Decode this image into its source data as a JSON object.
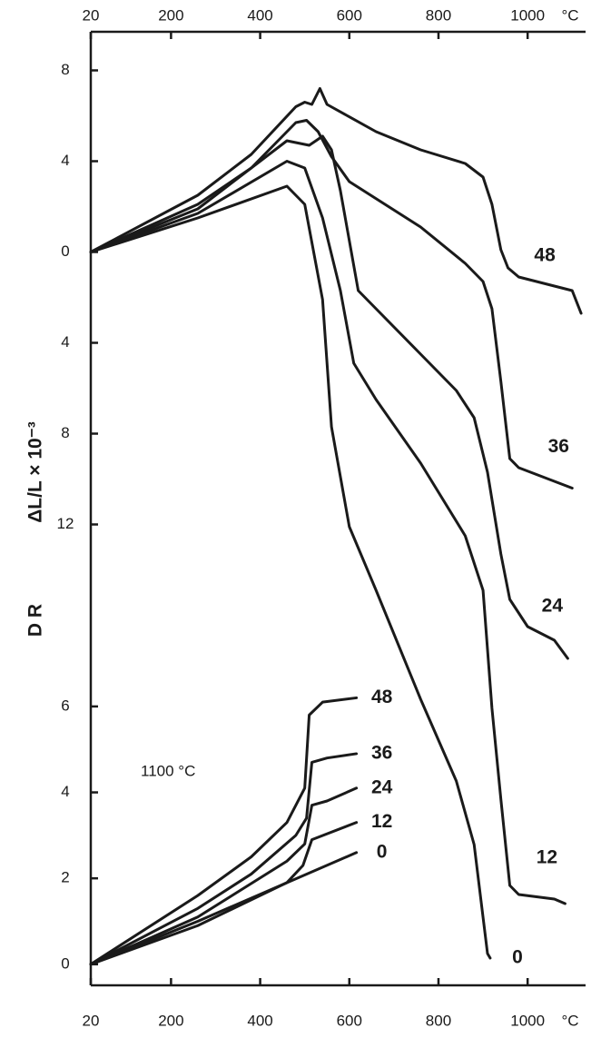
{
  "chart_data": {
    "type": "line",
    "y_label": "ΔL/L × 10⁻³",
    "y2_label": "D R",
    "x_unit": "°C",
    "annotation": "1100 °C",
    "xlim": [
      20,
      1130
    ],
    "xticks": [
      20,
      200,
      400,
      600,
      800,
      1000
    ],
    "ylim": [
      -32.3,
      9.7
    ],
    "yticks": [
      {
        "value": 8,
        "label": "8"
      },
      {
        "value": 4,
        "label": "4"
      },
      {
        "value": 0,
        "label": "0"
      },
      {
        "value": -4,
        "label": "4"
      },
      {
        "value": -8,
        "label": "8"
      },
      {
        "value": -12,
        "label": "12"
      }
    ],
    "y2lim": [
      -0.49,
      21.7
    ],
    "y2ticks": [
      0,
      2,
      4,
      6
    ],
    "color": "#1a1a1a",
    "series": [
      {
        "name": "48",
        "x": [
          20,
          260,
          380,
          480,
          500,
          516,
          534,
          550,
          660,
          760,
          860,
          900,
          920,
          940,
          956,
          980,
          1060,
          1100,
          1120
        ],
        "values": [
          0,
          2.5,
          4.3,
          6.4,
          6.6,
          6.5,
          7.2,
          6.5,
          5.3,
          4.5,
          3.9,
          3.3,
          2.1,
          0.1,
          -0.7,
          -1.1,
          -1.5,
          -1.7,
          -2.7
        ]
      },
      {
        "name": "36",
        "x": [
          20,
          260,
          380,
          480,
          504,
          530,
          560,
          600,
          760,
          860,
          900,
          920,
          940,
          960,
          980,
          1100
        ],
        "values": [
          0,
          2.1,
          3.7,
          5.7,
          5.8,
          5.3,
          4.2,
          3.1,
          1.1,
          -0.5,
          -1.3,
          -2.5,
          -5.7,
          -9.1,
          -9.5,
          -10.4
        ]
      },
      {
        "name": "24",
        "x": [
          20,
          260,
          460,
          510,
          540,
          560,
          580,
          620,
          660,
          760,
          840,
          880,
          910,
          940,
          960,
          1000,
          1060,
          1090
        ],
        "values": [
          0,
          1.9,
          4.9,
          4.7,
          5.1,
          4.5,
          2.7,
          -1.7,
          -2.5,
          -4.5,
          -6.1,
          -7.3,
          -9.7,
          -13.3,
          -15.3,
          -16.5,
          -17.1,
          -17.9
        ]
      },
      {
        "name": "12",
        "x": [
          20,
          260,
          460,
          500,
          540,
          580,
          610,
          660,
          760,
          860,
          900,
          920,
          940,
          960,
          980,
          1060,
          1084
        ],
        "values": [
          0,
          1.7,
          4.0,
          3.7,
          1.5,
          -1.7,
          -4.9,
          -6.5,
          -9.3,
          -12.5,
          -14.9,
          -20.1,
          -24.1,
          -27.9,
          -28.3,
          -28.5,
          -28.7
        ]
      },
      {
        "name": "0",
        "x": [
          20,
          260,
          460,
          500,
          540,
          560,
          600,
          660,
          760,
          840,
          880,
          910,
          916
        ],
        "values": [
          0,
          1.5,
          2.9,
          2.1,
          -2.1,
          -7.7,
          -12.1,
          -14.9,
          -19.7,
          -23.3,
          -26.1,
          -30.9,
          -31.1
        ]
      },
      {
        "name": "48",
        "axis": "y2",
        "x": [
          20,
          260,
          380,
          460,
          500,
          510,
          540,
          616
        ],
        "values": [
          0,
          1.6,
          2.5,
          3.3,
          4.1,
          5.8,
          6.1,
          6.2
        ]
      },
      {
        "name": "36",
        "axis": "y2",
        "x": [
          20,
          260,
          380,
          480,
          504,
          516,
          550,
          616
        ],
        "values": [
          0,
          1.3,
          2.1,
          3.0,
          3.4,
          4.7,
          4.8,
          4.9
        ]
      },
      {
        "name": "24",
        "axis": "y2",
        "x": [
          20,
          260,
          460,
          500,
          516,
          550,
          616
        ],
        "values": [
          0,
          1.1,
          2.4,
          2.8,
          3.7,
          3.8,
          4.1
        ]
      },
      {
        "name": "12",
        "axis": "y2",
        "x": [
          20,
          260,
          460,
          496,
          516,
          616
        ],
        "values": [
          0,
          0.9,
          1.9,
          2.3,
          2.9,
          3.3
        ]
      },
      {
        "name": "0",
        "axis": "y2",
        "x": [
          20,
          260,
          616
        ],
        "values": [
          0,
          1.0,
          2.6
        ]
      }
    ]
  }
}
